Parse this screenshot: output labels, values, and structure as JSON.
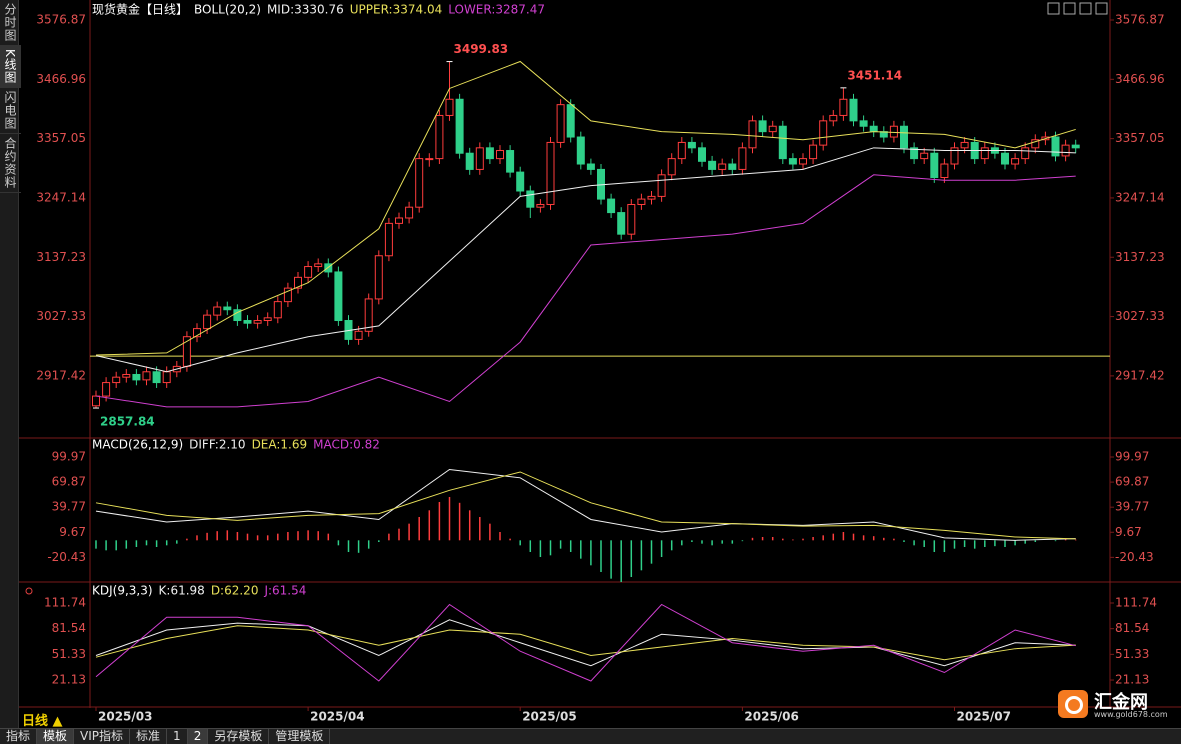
{
  "ui": {
    "side_menu": [
      "分时图",
      "K线图",
      "闪电图",
      "合约资料"
    ],
    "period_button": "日线 ▲",
    "bottom_tabs": [
      "指标",
      "模板",
      "VIP指标",
      "标准",
      "1",
      "2",
      "另存模板",
      "管理模板"
    ],
    "logo": "汇金网",
    "logo_url": "www.gold678.com"
  },
  "chart_data": [
    {
      "type": "candlestick",
      "title": "现货黄金【日线】",
      "indicator": "BOLL(20,2)",
      "up_color": "#ff3d3d",
      "down_color": "#2fd08a",
      "ylim": [
        2806.0,
        3576.87
      ],
      "yticks": [
        3576.87,
        3466.96,
        3357.05,
        3247.14,
        3137.23,
        3027.33,
        2917.42
      ],
      "reference_line": 2954,
      "candles": [
        [
          2862,
          2890,
          2857.84,
          2880
        ],
        [
          2880,
          2915,
          2870,
          2905
        ],
        [
          2905,
          2925,
          2895,
          2915
        ],
        [
          2915,
          2930,
          2905,
          2920
        ],
        [
          2920,
          2930,
          2900,
          2910
        ],
        [
          2910,
          2935,
          2900,
          2925
        ],
        [
          2925,
          2935,
          2895,
          2905
        ],
        [
          2905,
          2935,
          2895,
          2925
        ],
        [
          2925,
          2945,
          2915,
          2935
        ],
        [
          2935,
          3000,
          2925,
          2990
        ],
        [
          2990,
          3015,
          2980,
          3005
        ],
        [
          3005,
          3040,
          2995,
          3030
        ],
        [
          3030,
          3055,
          3020,
          3045
        ],
        [
          3045,
          3055,
          3030,
          3040
        ],
        [
          3040,
          3050,
          3010,
          3020
        ],
        [
          3020,
          3030,
          3005,
          3015
        ],
        [
          3015,
          3030,
          3005,
          3020
        ],
        [
          3020,
          3035,
          3010,
          3025
        ],
        [
          3025,
          3065,
          3015,
          3055
        ],
        [
          3055,
          3090,
          3045,
          3080
        ],
        [
          3080,
          3110,
          3070,
          3100
        ],
        [
          3100,
          3130,
          3090,
          3120
        ],
        [
          3120,
          3135,
          3110,
          3125
        ],
        [
          3125,
          3135,
          3100,
          3110
        ],
        [
          3110,
          3120,
          3010,
          3020
        ],
        [
          3020,
          3030,
          2975,
          2985
        ],
        [
          2985,
          3010,
          2975,
          3000
        ],
        [
          3000,
          3070,
          2990,
          3060
        ],
        [
          3060,
          3150,
          3050,
          3140
        ],
        [
          3140,
          3210,
          3130,
          3200
        ],
        [
          3200,
          3220,
          3190,
          3210
        ],
        [
          3210,
          3240,
          3200,
          3230
        ],
        [
          3230,
          3330,
          3220,
          3320
        ],
        [
          3320,
          3330,
          3305,
          3320
        ],
        [
          3320,
          3410,
          3310,
          3400
        ],
        [
          3400,
          3499.83,
          3390,
          3430
        ],
        [
          3430,
          3440,
          3320,
          3330
        ],
        [
          3330,
          3340,
          3290,
          3300
        ],
        [
          3300,
          3350,
          3290,
          3340
        ],
        [
          3340,
          3350,
          3310,
          3320
        ],
        [
          3320,
          3345,
          3310,
          3335
        ],
        [
          3335,
          3345,
          3285,
          3295
        ],
        [
          3295,
          3305,
          3250,
          3260
        ],
        [
          3260,
          3270,
          3210,
          3230
        ],
        [
          3230,
          3245,
          3220,
          3235
        ],
        [
          3235,
          3360,
          3225,
          3350
        ],
        [
          3350,
          3430,
          3340,
          3420
        ],
        [
          3420,
          3430,
          3350,
          3360
        ],
        [
          3360,
          3370,
          3300,
          3310
        ],
        [
          3310,
          3320,
          3290,
          3300
        ],
        [
          3300,
          3310,
          3235,
          3245
        ],
        [
          3245,
          3255,
          3210,
          3220
        ],
        [
          3220,
          3230,
          3170,
          3180
        ],
        [
          3180,
          3245,
          3170,
          3235
        ],
        [
          3235,
          3255,
          3225,
          3245
        ],
        [
          3245,
          3260,
          3235,
          3250
        ],
        [
          3250,
          3300,
          3240,
          3290
        ],
        [
          3290,
          3330,
          3280,
          3320
        ],
        [
          3320,
          3360,
          3310,
          3350
        ],
        [
          3350,
          3360,
          3330,
          3340
        ],
        [
          3340,
          3350,
          3305,
          3315
        ],
        [
          3315,
          3325,
          3290,
          3300
        ],
        [
          3300,
          3320,
          3290,
          3310
        ],
        [
          3310,
          3320,
          3290,
          3300
        ],
        [
          3300,
          3350,
          3290,
          3340
        ],
        [
          3340,
          3400,
          3330,
          3390
        ],
        [
          3390,
          3400,
          3360,
          3370
        ],
        [
          3370,
          3390,
          3360,
          3380
        ],
        [
          3380,
          3390,
          3310,
          3320
        ],
        [
          3320,
          3330,
          3300,
          3310
        ],
        [
          3310,
          3330,
          3300,
          3320
        ],
        [
          3320,
          3355,
          3310,
          3345
        ],
        [
          3345,
          3400,
          3335,
          3390
        ],
        [
          3390,
          3410,
          3380,
          3400
        ],
        [
          3400,
          3451.14,
          3390,
          3430
        ],
        [
          3430,
          3440,
          3380,
          3390
        ],
        [
          3390,
          3400,
          3370,
          3380
        ],
        [
          3380,
          3390,
          3360,
          3370
        ],
        [
          3370,
          3380,
          3350,
          3360
        ],
        [
          3360,
          3390,
          3350,
          3380
        ],
        [
          3380,
          3390,
          3330,
          3340
        ],
        [
          3340,
          3350,
          3310,
          3320
        ],
        [
          3320,
          3340,
          3310,
          3330
        ],
        [
          3330,
          3340,
          3275,
          3285
        ],
        [
          3285,
          3320,
          3275,
          3310
        ],
        [
          3310,
          3350,
          3300,
          3340
        ],
        [
          3340,
          3360,
          3330,
          3350
        ],
        [
          3350,
          3360,
          3310,
          3320
        ],
        [
          3320,
          3350,
          3310,
          3340
        ],
        [
          3340,
          3350,
          3320,
          3330
        ],
        [
          3330,
          3340,
          3300,
          3310
        ],
        [
          3310,
          3330,
          3300,
          3320
        ],
        [
          3320,
          3350,
          3310,
          3340
        ],
        [
          3340,
          3365,
          3330,
          3355
        ],
        [
          3355,
          3370,
          3345,
          3360
        ],
        [
          3360,
          3370,
          3315,
          3325
        ],
        [
          3325,
          3355,
          3315,
          3345
        ],
        [
          3345,
          3355,
          3330,
          3340
        ]
      ],
      "annotations": [
        {
          "candle": 35,
          "part": 1
        },
        {
          "candle": 74,
          "part": 1
        },
        {
          "candle": 0,
          "part": 2
        }
      ],
      "index": [
        0,
        7,
        14,
        21,
        28,
        35,
        42,
        49,
        56,
        63,
        70,
        77,
        84,
        91,
        97
      ],
      "series": [
        {
          "name": "MID:3330.76",
          "color": "#f0f0f0",
          "values": [
            2955,
            2925,
            2960,
            2990,
            3010,
            3130,
            3250,
            3270,
            3280,
            3290,
            3300,
            3340,
            3335,
            3335,
            3330.76
          ]
        },
        {
          "name": "UPPER:3374.04",
          "color": "#e8e05a",
          "values": [
            2956,
            2960,
            3035,
            3090,
            3190,
            3450,
            3500,
            3390,
            3370,
            3365,
            3355,
            3370,
            3365,
            3340,
            3374.04
          ]
        },
        {
          "name": "LOWER:3287.47",
          "color": "#d040d0",
          "values": [
            2880,
            2860,
            2860,
            2870,
            2915,
            2870,
            2980,
            3160,
            3170,
            3180,
            3200,
            3290,
            3280,
            3280,
            3287.47
          ]
        }
      ]
    },
    {
      "type": "macd",
      "title": "MACD(26,12,9)",
      "ylim": [
        -50,
        99.97
      ],
      "yticks": [
        99.97,
        69.87,
        39.77,
        9.67,
        -20.43
      ],
      "index": [
        0,
        7,
        14,
        21,
        28,
        35,
        42,
        49,
        56,
        63,
        70,
        77,
        84,
        91,
        97
      ],
      "series": [
        {
          "name": "DIFF:2.10",
          "color": "#f0f0f0",
          "values": [
            35,
            22,
            28,
            35,
            25,
            85,
            75,
            25,
            10,
            20,
            18,
            22,
            3,
            0,
            2.1
          ]
        },
        {
          "name": "DEA:1.69",
          "color": "#e8e05a",
          "values": [
            45,
            30,
            24,
            30,
            32,
            60,
            82,
            45,
            22,
            20,
            17,
            18,
            12,
            4,
            1.69
          ]
        }
      ],
      "histogram": {
        "name": "MACD:0.82",
        "color": "#d040d0",
        "up_color": "#ff3d3d",
        "down_color": "#2fd08a",
        "values": [
          -10,
          -12,
          -12,
          -10,
          -8,
          -6,
          -8,
          -6,
          -4,
          2,
          6,
          9,
          11,
          12,
          10,
          8,
          6,
          6,
          8,
          10,
          11,
          12,
          11,
          8,
          -6,
          -14,
          -15,
          -10,
          -2,
          8,
          14,
          20,
          28,
          36,
          46,
          52,
          45,
          36,
          28,
          20,
          10,
          2,
          -6,
          -14,
          -20,
          -18,
          -10,
          -14,
          -22,
          -30,
          -38,
          -46,
          -50,
          -44,
          -36,
          -28,
          -20,
          -12,
          -6,
          -2,
          -4,
          -6,
          -4,
          -4,
          -1,
          3,
          4,
          4,
          2,
          1,
          2,
          4,
          6,
          8,
          10,
          8,
          6,
          5,
          3,
          2,
          -2,
          -6,
          -8,
          -14,
          -14,
          -10,
          -8,
          -10,
          -8,
          -7,
          -8,
          -6,
          -4,
          -2,
          0,
          -1,
          1,
          0.82
        ]
      }
    },
    {
      "type": "kdj",
      "title": "KDJ(9,3,3)",
      "ylim": [
        0,
        111.74
      ],
      "yticks": [
        111.74,
        81.54,
        51.33,
        21.13
      ],
      "index": [
        0,
        7,
        14,
        21,
        28,
        35,
        42,
        49,
        56,
        63,
        70,
        77,
        84,
        91,
        97
      ],
      "xticks": [
        {
          "value": 0,
          "label": "2025/03"
        },
        {
          "value": 21,
          "label": "2025/04"
        },
        {
          "value": 42,
          "label": "2025/05"
        },
        {
          "value": 64,
          "label": "2025/06"
        },
        {
          "value": 85,
          "label": "2025/07"
        }
      ],
      "series": [
        {
          "name": "K:61.98",
          "color": "#f0f0f0",
          "values": [
            50,
            80,
            88,
            85,
            50,
            92,
            65,
            38,
            75,
            68,
            58,
            60,
            38,
            65,
            61.98
          ]
        },
        {
          "name": "D:62.20",
          "color": "#e8e05a",
          "values": [
            48,
            70,
            85,
            80,
            62,
            80,
            75,
            50,
            60,
            70,
            62,
            60,
            45,
            58,
            62.2
          ]
        },
        {
          "name": "J:61.54",
          "color": "#d040d0",
          "values": [
            25,
            95,
            95,
            85,
            20,
            110,
            55,
            20,
            110,
            65,
            55,
            62,
            30,
            80,
            61.54
          ]
        }
      ]
    }
  ]
}
